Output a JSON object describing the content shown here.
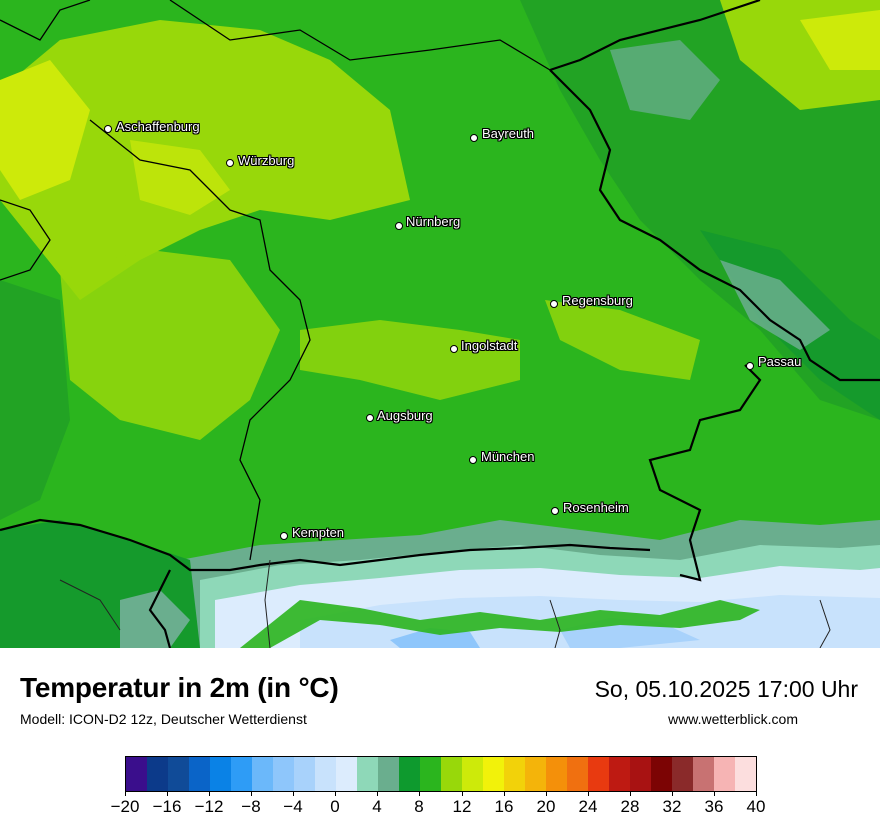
{
  "map": {
    "cities": [
      {
        "name": "Aschaffenburg"
      },
      {
        "name": "Würzburg"
      },
      {
        "name": "Bayreuth"
      },
      {
        "name": "Nürnberg"
      },
      {
        "name": "Regensburg"
      },
      {
        "name": "Ingolstadt"
      },
      {
        "name": "Passau"
      },
      {
        "name": "Augsburg"
      },
      {
        "name": "München"
      },
      {
        "name": "Rosenheim"
      },
      {
        "name": "Kempten"
      }
    ]
  },
  "footer": {
    "title": "Temperatur in 2m (in °C)",
    "subtitle": "Modell: ICON-D2 12z, Deutscher Wetterdienst",
    "datetime": "So, 05.10.2025 17:00 Uhr",
    "website": "www.wetterblick.com"
  },
  "legend": {
    "colors": [
      "#3a0e8c",
      "#0c3a8a",
      "#104b98",
      "#0a64c8",
      "#0a82e6",
      "#2e9cf6",
      "#6bb8fa",
      "#8ec6fb",
      "#a8d2fb",
      "#c8e2fc",
      "#dcecfd",
      "#8ed8b8",
      "#6aae8e",
      "#0e9a2e",
      "#2bb51e",
      "#98d80a",
      "#cdea0a",
      "#f2f20a",
      "#f2d20a",
      "#f4b40a",
      "#f4900a",
      "#f07010",
      "#e83a10",
      "#be1a12",
      "#a81212",
      "#7c0404",
      "#8a2a2a",
      "#c87272",
      "#f6b4b4",
      "#fcdede"
    ],
    "ticks": [
      "−20",
      "−16",
      "−12",
      "−8",
      "−4",
      "0",
      "4",
      "8",
      "12",
      "16",
      "20",
      "24",
      "28",
      "32",
      "36",
      "40"
    ]
  }
}
